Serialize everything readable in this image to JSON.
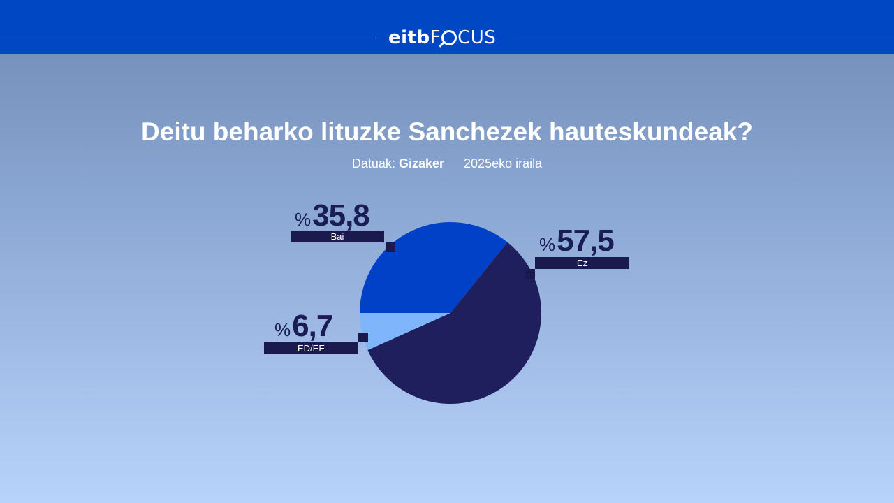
{
  "brand": {
    "logo_left": "eitb",
    "logo_right": "CUS",
    "logo_f": "F"
  },
  "header": {
    "title": "Deitu beharko lituzke Sanchezek hauteskundeak?",
    "source_label": "Datuak:",
    "source": "Gizaker",
    "date": "2025eko iraila"
  },
  "chart_data": {
    "type": "pie",
    "title": "Deitu beharko lituzke Sanchezek hauteskundeak?",
    "unit_symbol": "%",
    "slices": [
      {
        "label": "Bai",
        "value": 35.8,
        "value_text": "35,8",
        "color": "#0041c7"
      },
      {
        "label": "Ez",
        "value": 57.5,
        "value_text": "57,5",
        "color": "#1f1f5e"
      },
      {
        "label": "ED/EE",
        "value": 6.7,
        "value_text": "6,7",
        "color": "#7fb6fb"
      }
    ],
    "start_angle_deg": 270,
    "direction": "clockwise"
  }
}
